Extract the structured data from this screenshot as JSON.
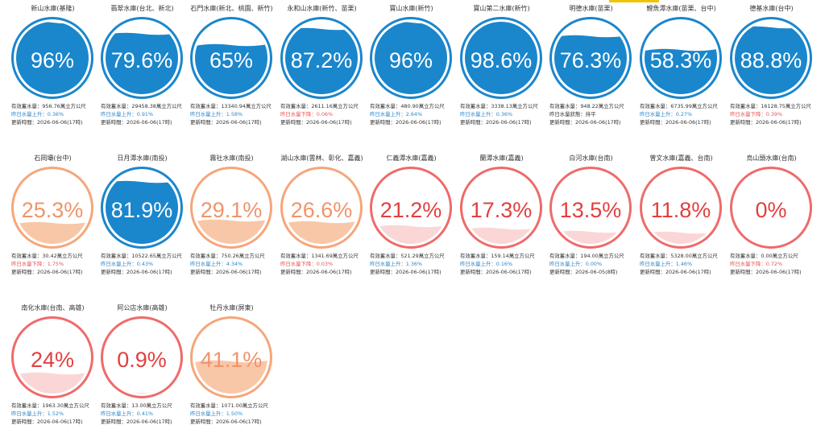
{
  "colors": {
    "blue": "#1a86cc",
    "blue_border": "#1a86cc",
    "orange_border": "#f5a67a",
    "orange_fill": "#f8c7a8",
    "orange_text": "#f0946a",
    "red_border": "#ef6a6a",
    "red_fill": "#fbd6d6",
    "red_text": "#e23f3f",
    "accent": "#f3c200"
  },
  "labels": {
    "capacity_prefix": "有效蓄水量：",
    "update_prefix": "更新時間："
  },
  "reservoirs": [
    {
      "name": "新山水庫(基隆)",
      "percent_text": "96%",
      "level": 0.96,
      "style": "blue",
      "capacity": "956.76萬立方公尺",
      "trend": "昨日水量上升：0.36%",
      "trend_dir": "up",
      "updated": "2026-06-06(17時)"
    },
    {
      "name": "翡翠水庫(台北、新北)",
      "percent_text": "79.6%",
      "level": 0.796,
      "style": "blue",
      "capacity": "29458.38萬立方公尺",
      "trend": "昨日水量上升：0.91%",
      "trend_dir": "up",
      "updated": "2026-06-06(17時)"
    },
    {
      "name": "石門水庫(新北、桃園、新竹)",
      "percent_text": "65%",
      "level": 0.65,
      "style": "blue",
      "capacity": "13340.94萬立方公尺",
      "trend": "昨日水量上升：1.58%",
      "trend_dir": "up",
      "updated": "2026-06-06(17時)"
    },
    {
      "name": "永和山水庫(新竹、苗栗)",
      "percent_text": "87.2%",
      "level": 0.872,
      "style": "blue",
      "capacity": "2611.16萬立方公尺",
      "trend": "昨日水量下降：0.06%",
      "trend_dir": "down",
      "updated": "2026-06-06(17時)"
    },
    {
      "name": "寶山水庫(新竹)",
      "percent_text": "96%",
      "level": 0.96,
      "style": "blue",
      "capacity": "480.90萬立方公尺",
      "trend": "昨日水量上升：2.64%",
      "trend_dir": "up",
      "updated": "2026-06-06(17時)"
    },
    {
      "name": "寶山第二水庫(新竹)",
      "percent_text": "98.6%",
      "level": 0.986,
      "style": "blue",
      "capacity": "3338.13萬立方公尺",
      "trend": "昨日水量上升：0.36%",
      "trend_dir": "up",
      "updated": "2026-06-06(17時)"
    },
    {
      "name": "明德水庫(苗栗)",
      "percent_text": "76.3%",
      "level": 0.763,
      "style": "blue",
      "capacity": "948.22萬立方公尺",
      "trend": "昨日水量狀態：持平",
      "trend_dir": "flat",
      "updated": "2026-06-06(17時)"
    },
    {
      "name": "鯉魚潭水庫(苗栗、台中)",
      "percent_text": "58.3%",
      "level": 0.583,
      "style": "blue",
      "capacity": "6735.99萬立方公尺",
      "trend": "昨日水量上升：0.27%",
      "trend_dir": "up",
      "updated": "2026-06-06(17時)"
    },
    {
      "name": "德基水庫(台中)",
      "percent_text": "88.8%",
      "level": 0.888,
      "style": "blue",
      "capacity": "16128.75萬立方公尺",
      "trend": "昨日水量下降：0.39%",
      "trend_dir": "down",
      "updated": "2026-06-06(17時)"
    },
    {
      "name": "石岡壩(台中)",
      "percent_text": "25.3%",
      "level": 0.253,
      "style": "orange",
      "capacity": "30.42萬立方公尺",
      "trend": "昨日水量下降：1.75%",
      "trend_dir": "down",
      "updated": "2026-06-06(17時)"
    },
    {
      "name": "日月潭水庫(南投)",
      "percent_text": "81.9%",
      "level": 0.819,
      "style": "blue",
      "capacity": "10522.65萬立方公尺",
      "trend": "昨日水量上升：0.43%",
      "trend_dir": "up",
      "updated": "2026-06-06(17時)"
    },
    {
      "name": "霧社水庫(南投)",
      "percent_text": "29.1%",
      "level": 0.291,
      "style": "orange",
      "capacity": "750.26萬立方公尺",
      "trend": "昨日水量上升：4.34%",
      "trend_dir": "up",
      "updated": "2026-06-06(17時)"
    },
    {
      "name": "湖山水庫(雲林、彰化、嘉義)",
      "percent_text": "26.6%",
      "level": 0.266,
      "style": "orange",
      "capacity": "1341.69萬立方公尺",
      "trend": "昨日水量下降：0.03%",
      "trend_dir": "down",
      "updated": "2026-06-06(17時)"
    },
    {
      "name": "仁義潭水庫(嘉義)",
      "percent_text": "21.2%",
      "level": 0.212,
      "style": "red",
      "capacity": "521.29萬立方公尺",
      "trend": "昨日水量上升：1.36%",
      "trend_dir": "up",
      "updated": "2026-06-06(17時)"
    },
    {
      "name": "蘭潭水庫(嘉義)",
      "percent_text": "17.3%",
      "level": 0.173,
      "style": "red",
      "capacity": "159.14萬立方公尺",
      "trend": "昨日水量上升：0.16%",
      "trend_dir": "up",
      "updated": "2026-06-06(17時)"
    },
    {
      "name": "白河水庫(台南)",
      "percent_text": "13.5%",
      "level": 0.135,
      "style": "red",
      "capacity": "194.00萬立方公尺",
      "trend": "昨日水量上升：0.00%",
      "trend_dir": "up",
      "updated": "2026-06-05(8時)"
    },
    {
      "name": "曾文水庫(嘉義、台南)",
      "percent_text": "11.8%",
      "level": 0.118,
      "style": "red",
      "capacity": "5328.00萬立方公尺",
      "trend": "昨日水量上升：1.46%",
      "trend_dir": "up",
      "updated": "2026-06-06(17時)"
    },
    {
      "name": "烏山頭水庫(台南)",
      "percent_text": "0%",
      "level": 0.0,
      "style": "red",
      "capacity": "0.00萬立方公尺",
      "trend": "昨日水量下降：0.72%",
      "trend_dir": "down",
      "updated": "2026-06-06(17時)"
    },
    {
      "name": "南化水庫(台南、高雄)",
      "percent_text": "24%",
      "level": 0.24,
      "style": "red",
      "capacity": "1963.30萬立方公尺",
      "trend": "昨日水量上升：1.52%",
      "trend_dir": "up",
      "updated": "2026-06-06(17時)"
    },
    {
      "name": "阿公店水庫(高雄)",
      "percent_text": "0.9%",
      "level": 0.009,
      "style": "red",
      "capacity": "13.00萬立方公尺",
      "trend": "昨日水量上升：0.41%",
      "trend_dir": "up",
      "updated": "2026-06-06(17時)"
    },
    {
      "name": "牡丹水庫(屏東)",
      "percent_text": "41.1%",
      "level": 0.411,
      "style": "orange",
      "capacity": "1071.00萬立方公尺",
      "trend": "昨日水量上升：1.50%",
      "trend_dir": "up",
      "updated": "2026-06-06(17時)"
    }
  ]
}
